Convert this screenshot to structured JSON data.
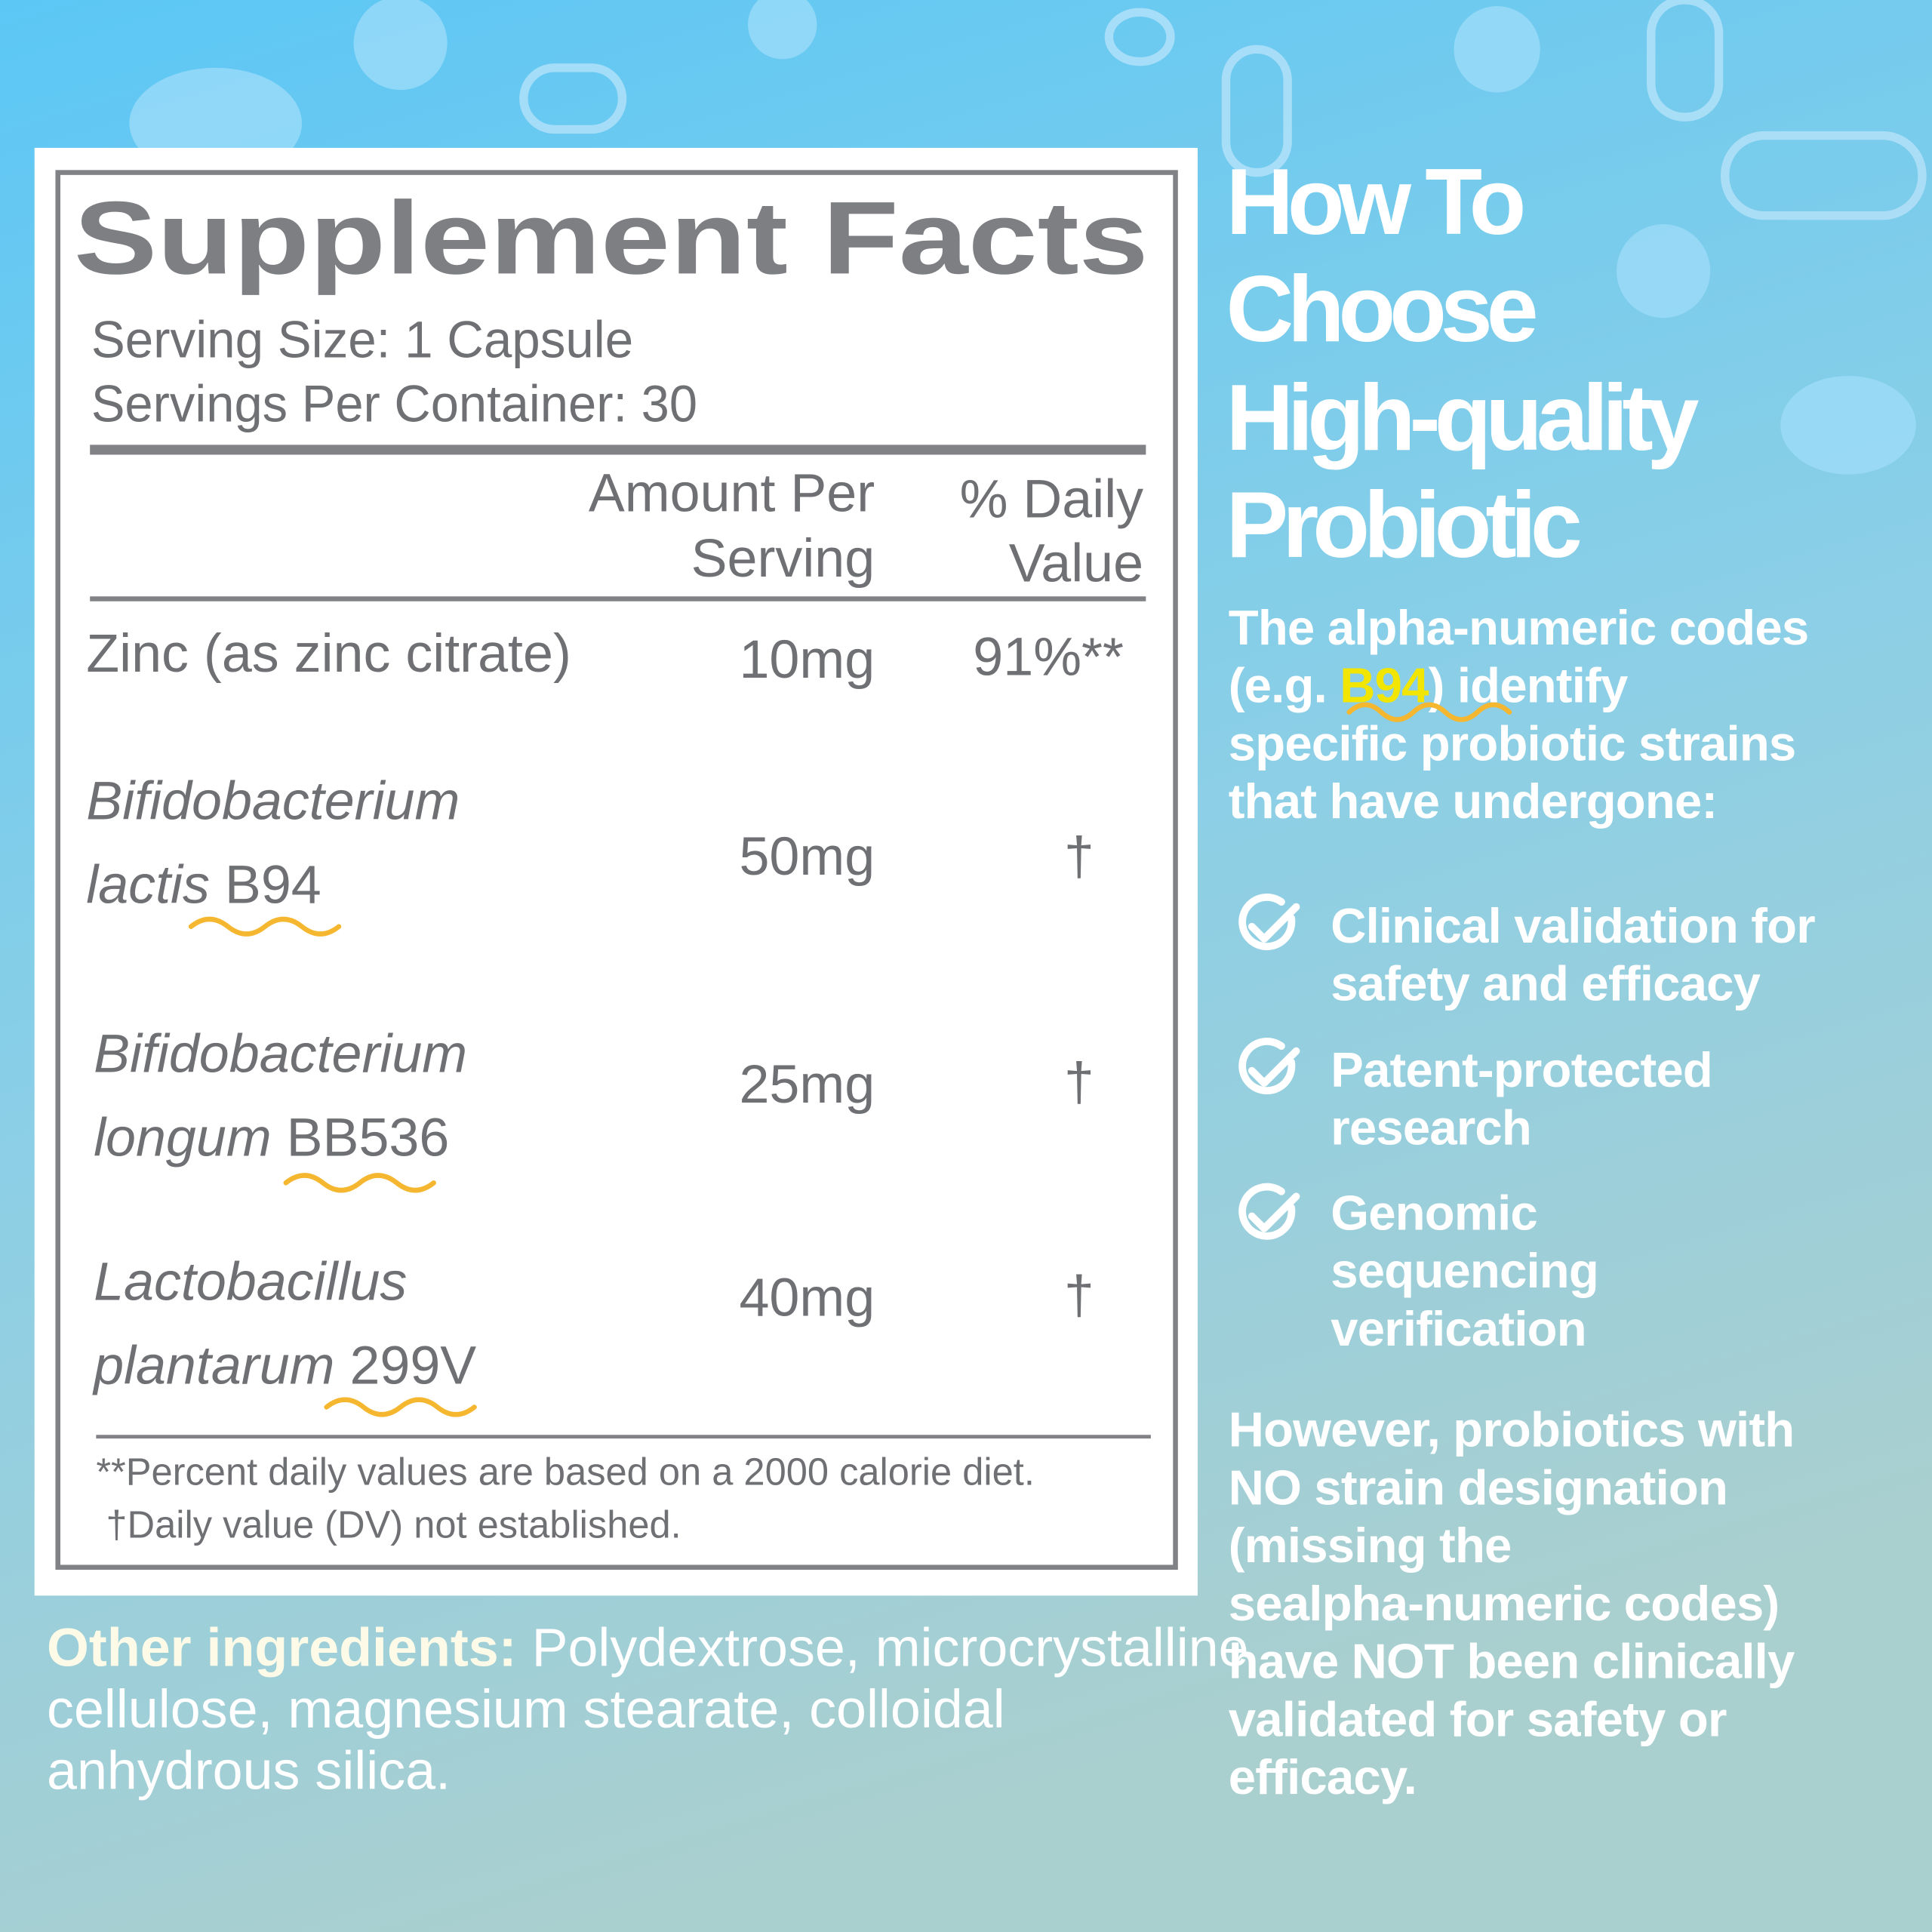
{
  "supplement_facts": {
    "title": "Supplement Facts",
    "serving_size": "Serving Size: 1 Capsule",
    "servings_per_container": "Servings Per Container: 30",
    "amount_header": [
      "Amount Per",
      "Serving"
    ],
    "daily_value_header": [
      "% Daily",
      "Value"
    ],
    "rows": [
      {
        "name": "Zinc (as zinc citrate)",
        "amount": "10mg",
        "daily_value": "91%**"
      },
      {
        "genus": "Bifidobacterium",
        "species": "lactis",
        "strain": "B94",
        "amount": "50mg",
        "daily_value": "†"
      },
      {
        "genus": "Bifidobacterium",
        "species": "longum",
        "strain": "BB536",
        "amount": "25mg",
        "daily_value": "†"
      },
      {
        "genus": "Lactobacillus",
        "species": "plantarum",
        "strain": "299V",
        "amount": "40mg",
        "daily_value": "†"
      }
    ],
    "footnotes": [
      "**Percent daily values are based on a 2000 calorie diet.",
      "†Daily value (DV) not established."
    ]
  },
  "other_ingredients": {
    "label": "Other ingredients:",
    "lines": [
      "Polydextrose, microcrystalline",
      "cellulose, magnesium stearate, colloidal",
      "anhydrous silica."
    ]
  },
  "guide": {
    "title_lines": [
      "How To",
      "Choose",
      "High-quality",
      "Probiotic"
    ],
    "intro": {
      "line1": "The alpha-numeric codes",
      "line2_before": "(e.g. ",
      "highlight": "B94",
      "line2_after": ") identify",
      "line3": "specific probiotic strains",
      "line4": "that have undergone:"
    },
    "checklist": [
      [
        "Clinical validation for",
        "safety and efficacy"
      ],
      [
        "Patent-protected",
        "research"
      ],
      [
        "Genomic",
        "sequencing",
        "verification"
      ]
    ],
    "closing_lines": [
      "However, probiotics with",
      "NO strain designation",
      "(missing the",
      "sealpha-numeric codes)",
      "have NOT been clinically",
      "validated for safety or",
      "efficacy."
    ]
  }
}
